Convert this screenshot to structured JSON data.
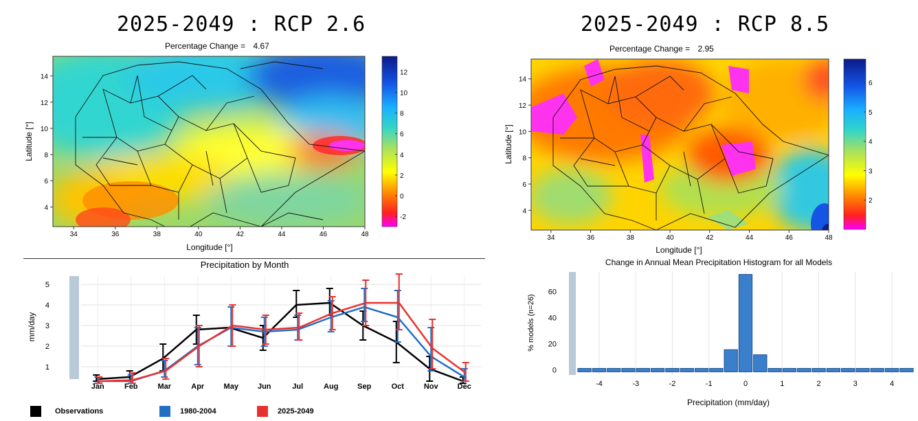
{
  "chart_data": [
    {
      "type": "heatmap",
      "title": "2025-2049 : RCP 2.6",
      "subtitle_label": "Percentage Change =",
      "subtitle_value": "4.67",
      "xlabel": "Longitude [°]",
      "ylabel": "Latitude [°]",
      "x_ticks": [
        "34",
        "36",
        "38",
        "40",
        "42",
        "44",
        "46",
        "48"
      ],
      "y_ticks": [
        "4",
        "6",
        "8",
        "10",
        "12",
        "14"
      ],
      "xlim": [
        33,
        48
      ],
      "ylim": [
        2.5,
        15.5
      ],
      "colorbar_ticks": [
        "-2",
        "0",
        "2",
        "4",
        "6",
        "8",
        "10",
        "12"
      ],
      "colorbar_range": [
        -3,
        13.5
      ]
    },
    {
      "type": "heatmap",
      "title": "2025-2049 : RCP 8.5",
      "subtitle_label": "Percentage Change =",
      "subtitle_value": "2.95",
      "xlabel": "Longitude [°]",
      "ylabel": "Latitude [°]",
      "x_ticks": [
        "34",
        "36",
        "38",
        "40",
        "42",
        "44",
        "46",
        "48"
      ],
      "y_ticks": [
        "4",
        "6",
        "8",
        "10",
        "12",
        "14"
      ],
      "xlim": [
        33,
        48
      ],
      "ylim": [
        2.5,
        15.5
      ],
      "colorbar_ticks": [
        "2",
        "3",
        "4",
        "5",
        "6"
      ],
      "colorbar_range": [
        1,
        6.8
      ]
    },
    {
      "type": "line",
      "title": "Precipitation by Month",
      "ylabel": "mm/day",
      "categories": [
        "Jan",
        "Feb",
        "Mar",
        "Apr",
        "May",
        "Jun",
        "Jul",
        "Aug",
        "Sep",
        "Oct",
        "Nov",
        "Dec"
      ],
      "ylim": [
        0.4,
        5.4
      ],
      "y_ticks": [
        "1",
        "2",
        "3",
        "4",
        "5"
      ],
      "series": [
        {
          "name": "Observations",
          "color": "#000000",
          "values": [
            0.4,
            0.5,
            1.4,
            2.8,
            2.9,
            2.4,
            4.0,
            4.1,
            3.0,
            2.2,
            0.9,
            0.3
          ],
          "err_low": [
            0.3,
            0.3,
            0.8,
            2.1,
            2.9,
            1.8,
            3.4,
            3.5,
            2.3,
            1.2,
            0.3,
            0.2
          ],
          "err_high": [
            0.6,
            0.8,
            2.1,
            3.5,
            2.9,
            3.0,
            4.7,
            4.8,
            3.7,
            3.2,
            1.5,
            0.5
          ]
        },
        {
          "name": "1980-2004",
          "color": "#1f6fc5",
          "values": [
            0.3,
            0.3,
            0.8,
            2.0,
            2.9,
            2.7,
            2.8,
            3.4,
            3.9,
            3.4,
            1.5,
            0.5
          ],
          "err_low": [
            0.2,
            0.2,
            0.5,
            1.1,
            2.0,
            2.0,
            2.3,
            2.7,
            3.2,
            2.2,
            0.8,
            0.3
          ],
          "err_high": [
            0.5,
            0.6,
            1.3,
            2.9,
            3.9,
            3.4,
            3.5,
            4.2,
            4.8,
            4.7,
            2.9,
            0.9
          ]
        },
        {
          "name": "2025-2049",
          "color": "#e8312f",
          "values": [
            0.3,
            0.35,
            0.8,
            2.0,
            3.0,
            2.8,
            2.9,
            3.6,
            4.1,
            4.1,
            1.9,
            0.7
          ],
          "err_low": [
            0.2,
            0.2,
            0.4,
            1.0,
            2.0,
            2.1,
            2.3,
            2.8,
            3.0,
            2.8,
            0.9,
            0.3
          ],
          "err_high": [
            0.5,
            0.7,
            1.4,
            3.0,
            4.0,
            3.5,
            3.6,
            4.4,
            5.2,
            5.5,
            3.3,
            1.2
          ]
        }
      ]
    },
    {
      "type": "bar",
      "title": "Change in Annual Mean Precipitation Histogram for all Models",
      "xlabel": "Precipitation (mm/day)",
      "ylabel": "% models (n=26)",
      "x_ticks": [
        "-4",
        "-3",
        "-2",
        "-1",
        "0",
        "1",
        "2",
        "3",
        "4"
      ],
      "y_ticks": [
        "0",
        "20",
        "40",
        "60"
      ],
      "xlim": [
        -4.6,
        4.6
      ],
      "ylim": [
        -4,
        75
      ],
      "bar_width": 0.4,
      "x": [
        -4.4,
        -4.0,
        -3.6,
        -3.2,
        -2.8,
        -2.4,
        -2.0,
        -1.6,
        -1.2,
        -0.8,
        -0.4,
        0.0,
        0.4,
        0.8,
        1.2,
        1.6,
        2.0,
        2.4,
        2.8,
        3.2,
        3.6,
        4.0,
        4.4
      ],
      "values": [
        0,
        0,
        0,
        0,
        0,
        0,
        0,
        0,
        0,
        0,
        15.4,
        73.1,
        11.5,
        0,
        0,
        0,
        0,
        0,
        0,
        0,
        0,
        0,
        0
      ]
    }
  ],
  "legend": {
    "items": [
      {
        "label": "Observations",
        "color": "#000000"
      },
      {
        "label": "1980-2004",
        "color": "#1f6fc5"
      },
      {
        "label": "2025-2049",
        "color": "#e8312f"
      }
    ]
  }
}
